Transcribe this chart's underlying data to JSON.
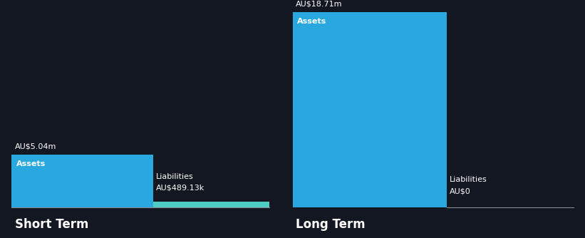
{
  "background_color": "#131722",
  "text_color": "#ffffff",
  "sections": [
    "Short Term",
    "Long Term"
  ],
  "short_term": {
    "assets_value": 5.04,
    "liabilities_value": 0.48913,
    "assets_label": "AU$5.04m",
    "liabilities_label": "AU$489.13k",
    "assets_bar_label": "Assets",
    "liabilities_bar_label": "Liabilities",
    "assets_color": "#29a8e0",
    "liabilities_color": "#4ecdc4"
  },
  "long_term": {
    "assets_value": 18.71,
    "liabilities_value": 0,
    "assets_label": "AU$18.71m",
    "liabilities_label": "AU$0",
    "assets_bar_label": "Assets",
    "liabilities_bar_label": "Liabilities",
    "assets_color": "#29a8e0",
    "liabilities_color": "#29a8e0"
  },
  "max_value": 18.71,
  "section_label_fontsize": 12,
  "value_label_fontsize": 8,
  "inside_label_fontsize": 8,
  "fig_width": 8.21,
  "fig_height": 3.34,
  "dpi": 100
}
